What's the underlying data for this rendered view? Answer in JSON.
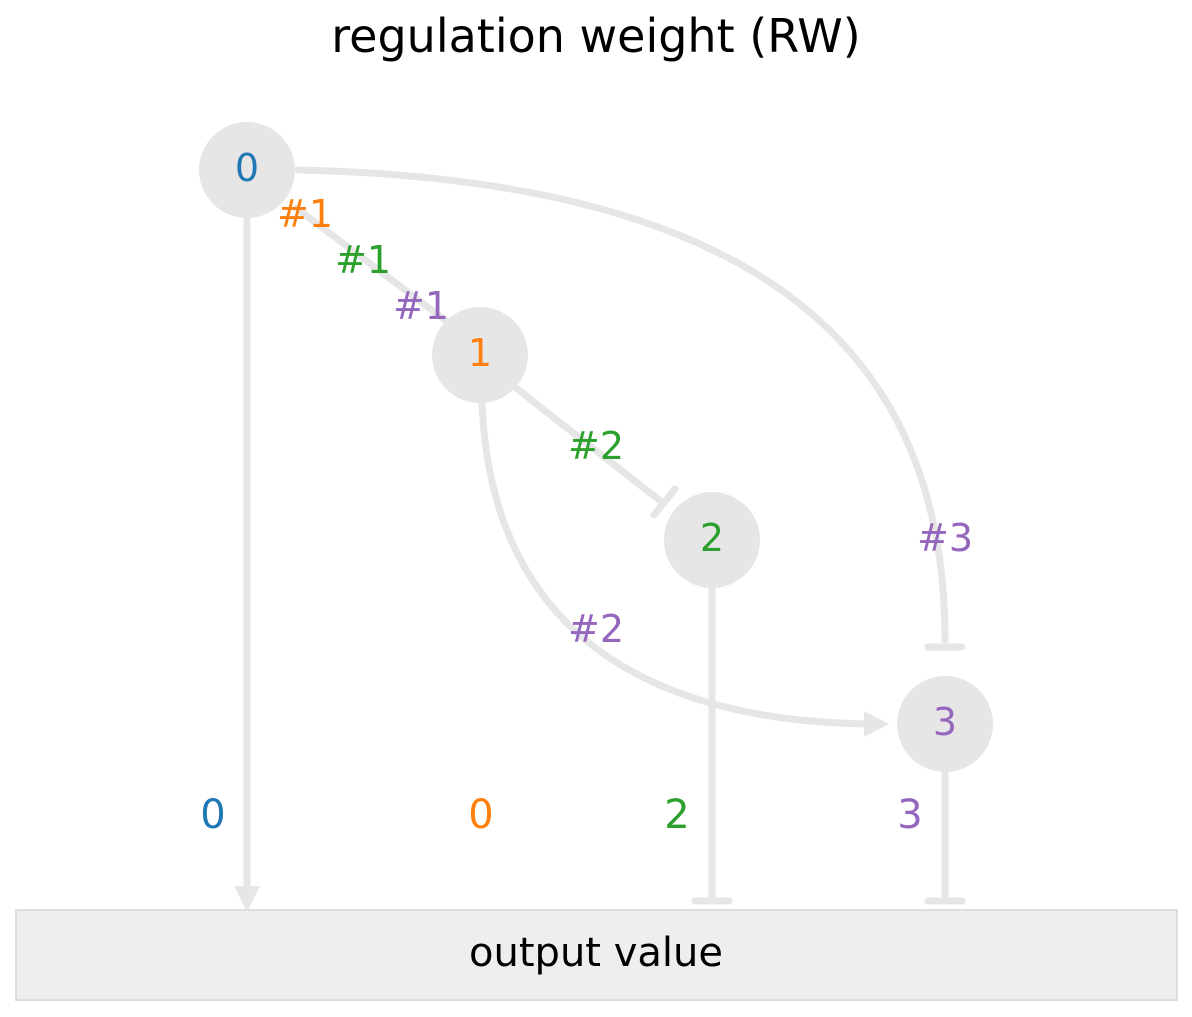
{
  "title": "regulation weight (RW)",
  "output": {
    "label": "output value"
  },
  "colors": {
    "edge": "#e6e6e6",
    "node_fill": "#e6e6e6",
    "output_fill": "#eeeeee",
    "output_border": "#dddddd",
    "c0": "#1f77b4",
    "c1": "#ff7f0e",
    "c2": "#2ca02c",
    "c3": "#9467bd"
  },
  "nodes": [
    {
      "id": "0",
      "label": "0",
      "color": "#1f77b4"
    },
    {
      "id": "1",
      "label": "1",
      "color": "#ff7f0e"
    },
    {
      "id": "2",
      "label": "2",
      "color": "#2ca02c"
    },
    {
      "id": "3",
      "label": "3",
      "color": "#9467bd"
    }
  ],
  "edges": [
    {
      "from": "0",
      "to": "1",
      "type": "activation",
      "labels": [
        "#1",
        "#1",
        "#1"
      ]
    },
    {
      "from": "1",
      "to": "2",
      "type": "inhibition",
      "labels": [
        "#2"
      ]
    },
    {
      "from": "1",
      "to": "3",
      "type": "activation",
      "labels": [
        "#2"
      ]
    },
    {
      "from": "0",
      "to": "3",
      "type": "inhibition",
      "labels": [
        "#3"
      ]
    },
    {
      "from": "0",
      "to": "output",
      "type": "activation",
      "labels": [
        "0"
      ]
    },
    {
      "from": "1",
      "to": "output",
      "type": "none",
      "labels": [
        "0"
      ]
    },
    {
      "from": "2",
      "to": "output",
      "type": "inhibition",
      "labels": [
        "2"
      ]
    },
    {
      "from": "3",
      "to": "output",
      "type": "inhibition",
      "labels": [
        "3"
      ]
    }
  ]
}
